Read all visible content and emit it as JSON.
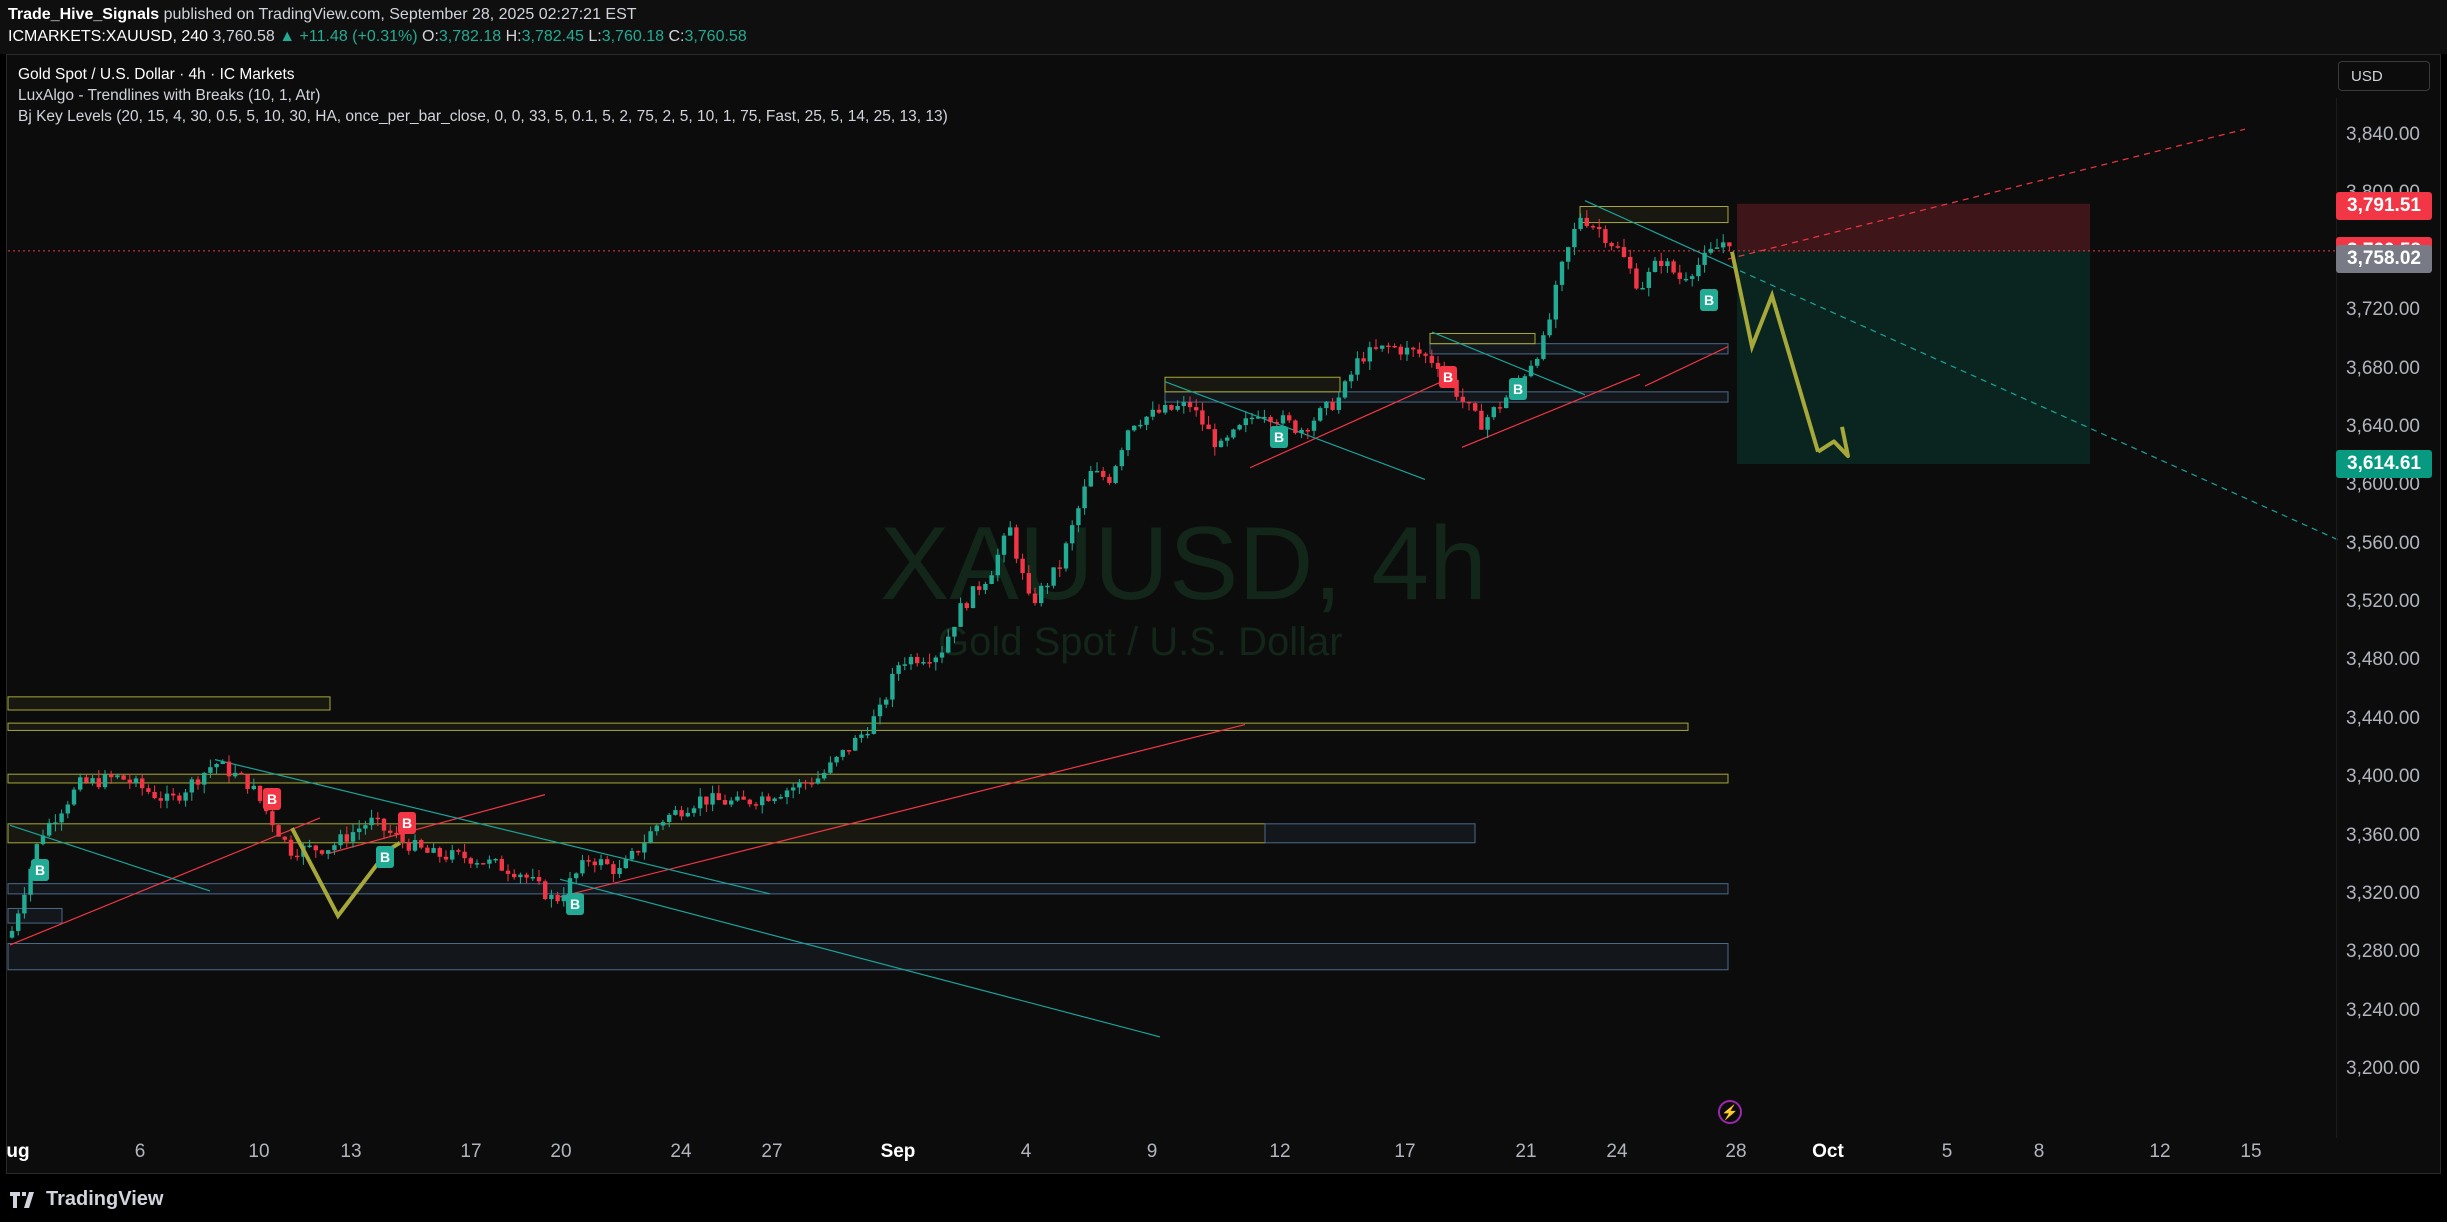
{
  "header": {
    "publisher": "Trade_Hive_Signals",
    "published_text": " published on TradingView.com, September 28, 2025 02:27:21 EST",
    "symbol": "ICMARKETS:XAUUSD, 240",
    "last": "3,760.58",
    "change": "▲ +11.48 (+0.31%)",
    "o_label": "O:",
    "o": "3,782.18",
    "h_label": "H:",
    "h": "3,782.45",
    "l_label": "L:",
    "l": "3,760.18",
    "c_label": "C:",
    "c": "3,760.58"
  },
  "legend": {
    "title": "Gold Spot / U.S. Dollar · 4h · IC Markets",
    "indicator1": "LuxAlgo - Trendlines with Breaks (10, 1, Atr)",
    "indicator2": "Bj Key Levels (20, 15, 4, 30, 0.5, 5, 10, 30, HA, once_per_bar_close, 0, 0, 33, 5, 0.1, 5, 2, 75, 2, 5, 10, 1, 75, Fast, 25, 5, 14, 25, 13, 13)"
  },
  "currency_button": "USD",
  "watermark": {
    "symbol": "XAUUSD, 4h",
    "name": "Gold Spot / U.S. Dollar"
  },
  "price_axis": {
    "labels": [
      "3,840.00",
      "3,800.00",
      "3,720.00",
      "3,680.00",
      "3,640.00",
      "3,600.00",
      "3,560.00",
      "3,520.00",
      "3,480.00",
      "3,440.00",
      "3,400.00",
      "3,360.00",
      "3,320.00",
      "3,280.00",
      "3,240.00",
      "3,200.00"
    ],
    "tags": [
      {
        "value": "3,791.51",
        "color": "#f23645"
      },
      {
        "value": "3,760.58",
        "color": "#f23645"
      },
      {
        "value": "3,758.02",
        "color": "#787b86"
      },
      {
        "value": "3,614.61",
        "color": "#089981"
      }
    ]
  },
  "time_axis": {
    "labels": [
      "ug",
      "6",
      "10",
      "13",
      "17",
      "20",
      "24",
      "27",
      "Sep",
      "4",
      "9",
      "12",
      "17",
      "21",
      "24",
      "28",
      "Oct",
      "5",
      "8",
      "12",
      "15"
    ]
  },
  "signals": [
    "B",
    "B",
    "B",
    "B",
    "B",
    "B",
    "B",
    "B",
    "B"
  ],
  "colors": {
    "bull": "#22ab94",
    "bear": "#f23645",
    "projection": "#a6a83a",
    "trendline_red": "#f23645",
    "trendline_teal": "#1aa39a"
  },
  "footer": {
    "brand": "TradingView"
  }
}
